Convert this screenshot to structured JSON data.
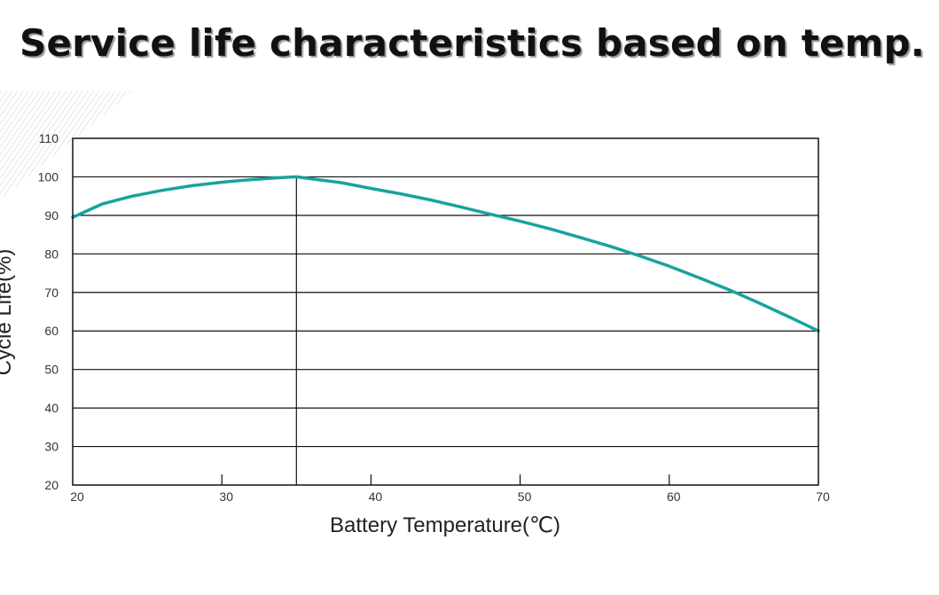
{
  "title": "Service life characteristics based on temp.",
  "chart_data": {
    "type": "line",
    "title": "",
    "xlabel": "Battery Temperature(℃)",
    "ylabel": "Cycle Life(%)",
    "xlim": [
      20,
      70
    ],
    "ylim": [
      20,
      110
    ],
    "xticks": [
      20,
      30,
      40,
      50,
      60,
      70
    ],
    "yticks": [
      20,
      30,
      40,
      50,
      60,
      70,
      80,
      90,
      100,
      110
    ],
    "grid": "horizontal",
    "legend": "none",
    "reference_line_x": 35,
    "series": [
      {
        "color": "#18a39c",
        "x": [
          20,
          22,
          24,
          26,
          28,
          30,
          32,
          34,
          35,
          36,
          38,
          40,
          42,
          44,
          46,
          48,
          50,
          52,
          54,
          56,
          58,
          60,
          62,
          64,
          66,
          68,
          70
        ],
        "y": [
          89.5,
          93,
          95,
          96.5,
          97.7,
          98.6,
          99.3,
          99.8,
          100,
          99.5,
          98.5,
          97,
          95.6,
          94,
          92.2,
          90.3,
          88.5,
          86.5,
          84.3,
          82,
          79.5,
          76.8,
          73.8,
          70.7,
          67.3,
          63.7,
          60
        ]
      }
    ]
  }
}
